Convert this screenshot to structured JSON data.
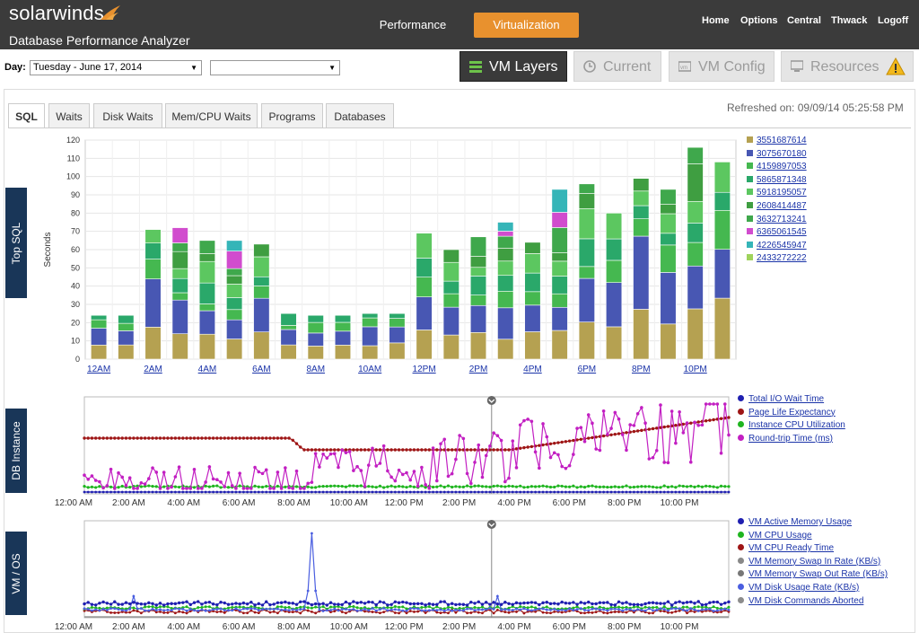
{
  "header": {
    "brand": "solarwinds",
    "subtitle": "Database Performance Analyzer",
    "tabs": [
      {
        "label": "Performance",
        "active": false
      },
      {
        "label": "Virtualization",
        "active": true
      }
    ],
    "nav": [
      "Home",
      "Options",
      "Central",
      "Thwack",
      "Logoff"
    ],
    "accent": "#e8912e"
  },
  "toolbar": {
    "day_label": "Day:",
    "day_value": "Tuesday - June 17, 2014",
    "second_select_value": "",
    "view_tabs": [
      {
        "label": "VM Layers",
        "active": true,
        "icon": "layers-icon"
      },
      {
        "label": "Current",
        "active": false,
        "icon": "clock-icon"
      },
      {
        "label": "VM Config",
        "active": false,
        "icon": "vm-icon"
      },
      {
        "label": "Resources",
        "active": false,
        "icon": "monitor-icon",
        "warning": true
      }
    ]
  },
  "panel": {
    "tabs": [
      "SQL",
      "Waits",
      "Disk Waits",
      "Mem/CPU Waits",
      "Programs",
      "Databases"
    ],
    "active_tab": "SQL",
    "refreshed": "Refreshed on: 09/09/14 05:25:58 PM",
    "sections": {
      "top_sql": "Top SQL",
      "db_instance": "DB Instance",
      "vm_os": "VM / OS"
    }
  },
  "chart_data": [
    {
      "type": "bar",
      "stacked": true,
      "ylabel": "Seconds",
      "ylim": [
        0,
        120
      ],
      "yticks": [
        0,
        10,
        20,
        30,
        40,
        50,
        60,
        70,
        80,
        90,
        100,
        110,
        120
      ],
      "xtick_labels": [
        "12AM",
        "2AM",
        "4AM",
        "6AM",
        "8AM",
        "10AM",
        "12PM",
        "2PM",
        "4PM",
        "6PM",
        "8PM",
        "10PM"
      ],
      "bar_count": 24,
      "series": [
        {
          "name": "3551687614",
          "color": "#b5a151"
        },
        {
          "name": "3075670180",
          "color": "#4857b3"
        },
        {
          "name": "4159897053",
          "color": "#45b850"
        },
        {
          "name": "5865871348",
          "color": "#2aa86a"
        },
        {
          "name": "5918195057",
          "color": "#5cc760"
        },
        {
          "name": "2608414487",
          "color": "#3f9e41"
        },
        {
          "name": "3632713241",
          "color": "#3fa84c"
        },
        {
          "name": "6365061545",
          "color": "#d14cce"
        },
        {
          "name": "4226545947",
          "color": "#35b5b8"
        },
        {
          "name": "2433272222",
          "color": "#9fd35c"
        }
      ],
      "totals": [
        24,
        24,
        71,
        72,
        65,
        65,
        63,
        25,
        24,
        24,
        25,
        25,
        69,
        60,
        67,
        75,
        64,
        93,
        96,
        80,
        99,
        93,
        116,
        108
      ]
    },
    {
      "type": "line",
      "xtick_labels": [
        "12:00 AM",
        "2:00 AM",
        "4:00 AM",
        "6:00 AM",
        "8:00 AM",
        "10:00 AM",
        "12:00 PM",
        "2:00 PM",
        "4:00 PM",
        "6:00 PM",
        "8:00 PM",
        "10:00 PM"
      ],
      "series": [
        {
          "name": "Total I/O Wait Time",
          "color": "#1f1fb0"
        },
        {
          "name": "Page Life Expectancy",
          "color": "#9e1515"
        },
        {
          "name": "Instance CPU Utilization",
          "color": "#1fb51f"
        },
        {
          "name": "Round-trip Time (ms)",
          "color": "#c21fc2"
        }
      ]
    },
    {
      "type": "line",
      "xtick_labels": [
        "12:00 AM",
        "2:00 AM",
        "4:00 AM",
        "6:00 AM",
        "8:00 AM",
        "10:00 AM",
        "12:00 PM",
        "2:00 PM",
        "4:00 PM",
        "6:00 PM",
        "8:00 PM",
        "10:00 PM"
      ],
      "series": [
        {
          "name": "VM Active Memory Usage",
          "color": "#1f1fb0"
        },
        {
          "name": "VM CPU Usage",
          "color": "#1fb51f"
        },
        {
          "name": "VM CPU Ready Time",
          "color": "#9e1515"
        },
        {
          "name": "VM Memory Swap In Rate (KB/s)",
          "color": "#888888"
        },
        {
          "name": "VM Memory Swap Out Rate (KB/s)",
          "color": "#777777"
        },
        {
          "name": "VM Disk Usage Rate (KB/s)",
          "color": "#4a5ee0"
        },
        {
          "name": "VM Disk Commands Aborted",
          "color": "#8c8c8c"
        }
      ]
    }
  ]
}
